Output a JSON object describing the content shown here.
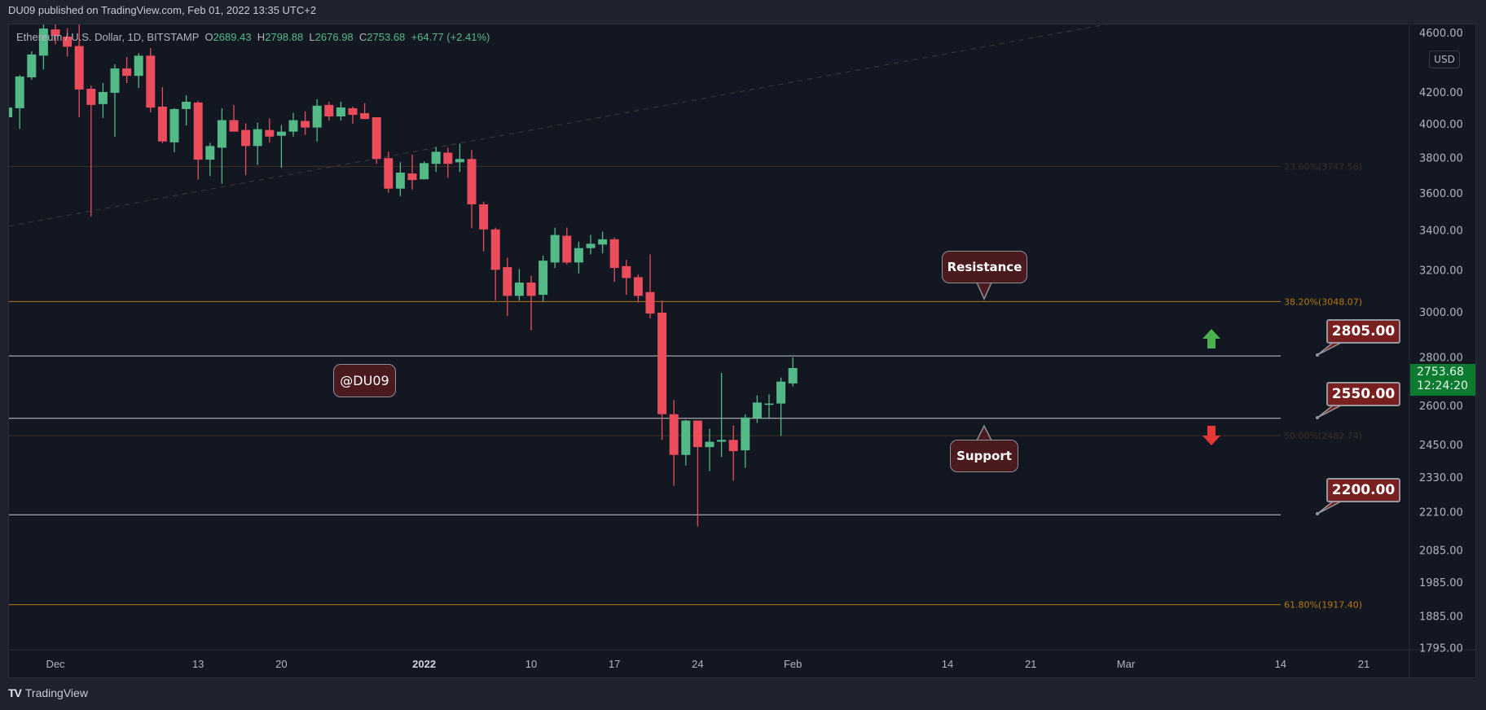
{
  "header": {
    "published": "DU09 published on TradingView.com, Feb 01, 2022 13:35 UTC+2"
  },
  "legend": {
    "symbol": "Ethereum / U.S. Dollar, 1D, BITSTAMP",
    "o_label": "O",
    "o": "2689.43",
    "h_label": "H",
    "h": "2798.88",
    "l_label": "L",
    "l": "2676.98",
    "c_label": "C",
    "c": "2753.68",
    "change": "+64.77 (+2.41%)"
  },
  "currency_button": "USD",
  "last_price": {
    "price": "2753.68",
    "countdown": "12:24:20"
  },
  "annotations": {
    "resistance": "Resistance",
    "support": "Support",
    "watermark": "@DU09",
    "levels": [
      "2805.00",
      "2550.00",
      "2200.00"
    ]
  },
  "footer": {
    "brand": "TradingView",
    "logo_icon": "tradingview-logo-icon"
  },
  "colors": {
    "up": "#53b987",
    "down": "#eb4d5c",
    "fib_strong": "#b8770f",
    "fib_weak": "#3b2f24",
    "level": "#c8cad0",
    "arrow_up": "#4caf50",
    "arrow_down": "#e53935"
  },
  "chart_data": {
    "type": "candlestick",
    "scale": "log",
    "title": "Ethereum / U.S. Dollar, 1D, BITSTAMP",
    "start_date": "2021-11-27",
    "ohlc": [
      [
        4041,
        4110,
        4030,
        4101
      ],
      [
        4097,
        4310,
        3970,
        4301
      ],
      [
        4295,
        4470,
        4279,
        4448
      ],
      [
        4440,
        4660,
        4348,
        4628
      ],
      [
        4622,
        4660,
        4518,
        4577
      ],
      [
        4571,
        4630,
        4434,
        4501
      ],
      [
        4506,
        4660,
        4041,
        4216
      ],
      [
        4221,
        4242,
        3472,
        4118
      ],
      [
        4123,
        4258,
        4036,
        4200
      ],
      [
        4195,
        4382,
        3922,
        4354
      ],
      [
        4354,
        4431,
        4258,
        4305
      ],
      [
        4305,
        4457,
        4226,
        4440
      ],
      [
        4440,
        4492,
        4071,
        4101
      ],
      [
        4107,
        4232,
        3884,
        3894
      ],
      [
        3889,
        4097,
        3830,
        4092
      ],
      [
        4092,
        4179,
        3990,
        4138
      ],
      [
        4133,
        4143,
        3674,
        3787
      ],
      [
        3787,
        3886,
        3693,
        3867
      ],
      [
        3857,
        4097,
        3650,
        4023
      ],
      [
        4023,
        4118,
        3953,
        3953
      ],
      [
        3963,
        4003,
        3698,
        3867
      ],
      [
        3867,
        4008,
        3757,
        3968
      ],
      [
        3963,
        4034,
        3888,
        3923
      ],
      [
        3928,
        3993,
        3741,
        3953
      ],
      [
        3953,
        4069,
        3923,
        4023
      ],
      [
        4018,
        4076,
        3933,
        3978
      ],
      [
        3978,
        4153,
        3894,
        4113
      ],
      [
        4118,
        4138,
        4021,
        4046
      ],
      [
        4046,
        4138,
        4021,
        4102
      ],
      [
        4097,
        4107,
        4001,
        4056
      ],
      [
        4066,
        4128,
        4030,
        4030
      ],
      [
        4041,
        4041,
        3763,
        3791
      ],
      [
        3796,
        3833,
        3600,
        3623
      ],
      [
        3623,
        3772,
        3582,
        3713
      ],
      [
        3708,
        3816,
        3618,
        3671
      ],
      [
        3675,
        3777,
        3675,
        3767
      ],
      [
        3763,
        3862,
        3716,
        3833
      ],
      [
        3828,
        3857,
        3684,
        3763
      ],
      [
        3772,
        3880,
        3716,
        3791
      ],
      [
        3791,
        3843,
        3410,
        3537
      ],
      [
        3537,
        3551,
        3292,
        3404
      ],
      [
        3404,
        3413,
        3053,
        3200
      ],
      [
        3213,
        3260,
        2982,
        3075
      ],
      [
        3075,
        3204,
        3053,
        3138
      ],
      [
        3138,
        3170,
        2917,
        3075
      ],
      [
        3080,
        3270,
        3049,
        3245
      ],
      [
        3236,
        3413,
        3209,
        3375
      ],
      [
        3371,
        3413,
        3227,
        3236
      ],
      [
        3236,
        3340,
        3182,
        3308
      ],
      [
        3308,
        3375,
        3276,
        3330
      ],
      [
        3326,
        3393,
        3281,
        3353
      ],
      [
        3353,
        3362,
        3142,
        3209
      ],
      [
        3218,
        3249,
        3080,
        3160
      ],
      [
        3164,
        3177,
        3044,
        3075
      ],
      [
        3093,
        3277,
        2971,
        2993
      ],
      [
        2997,
        3053,
        2467,
        2566
      ],
      [
        2566,
        2622,
        2300,
        2411
      ],
      [
        2411,
        2544,
        2372,
        2541
      ],
      [
        2541,
        2541,
        2161,
        2440
      ],
      [
        2440,
        2510,
        2352,
        2460
      ],
      [
        2460,
        2733,
        2403,
        2467
      ],
      [
        2467,
        2522,
        2318,
        2425
      ],
      [
        2428,
        2566,
        2364,
        2553
      ],
      [
        2550,
        2641,
        2532,
        2612
      ],
      [
        2603,
        2645,
        2550,
        2608
      ],
      [
        2608,
        2714,
        2482,
        2697
      ],
      [
        2689.43,
        2798.88,
        2676.98,
        2753.68
      ]
    ],
    "y_ticks": [
      {
        "label": "4600.00",
        "value": 4600
      },
      {
        "label": "4200.00",
        "value": 4200
      },
      {
        "label": "4000.00",
        "value": 4000
      },
      {
        "label": "3800.00",
        "value": 3800
      },
      {
        "label": "3600.00",
        "value": 3600
      },
      {
        "label": "3400.00",
        "value": 3400
      },
      {
        "label": "3200.00",
        "value": 3200
      },
      {
        "label": "3000.00",
        "value": 3000
      },
      {
        "label": "2800.00",
        "value": 2800
      },
      {
        "label": "2600.00",
        "value": 2600
      },
      {
        "label": "2450.00",
        "value": 2450
      },
      {
        "label": "2330.00",
        "value": 2330
      },
      {
        "label": "2210.00",
        "value": 2210
      },
      {
        "label": "2085.00",
        "value": 2085
      },
      {
        "label": "1985.00",
        "value": 1985
      },
      {
        "label": "1885.00",
        "value": 1885
      },
      {
        "label": "1795.00",
        "value": 1795
      }
    ],
    "x_ticks": [
      {
        "label": "Dec",
        "day": 4
      },
      {
        "label": "13",
        "day": 16
      },
      {
        "label": "20",
        "day": 23
      },
      {
        "label": "2022",
        "day": 35,
        "bold": true
      },
      {
        "label": "10",
        "day": 44
      },
      {
        "label": "17",
        "day": 51
      },
      {
        "label": "24",
        "day": 58
      },
      {
        "label": "Feb",
        "day": 66
      },
      {
        "label": "14",
        "day": 79
      },
      {
        "label": "21",
        "day": 86
      },
      {
        "label": "Mar",
        "day": 94
      },
      {
        "label": "14",
        "day": 107
      },
      {
        "label": "21",
        "day": 114
      }
    ],
    "horizontal_levels": [
      2805,
      2550,
      2200
    ],
    "fibonacci": [
      {
        "label": "23.60%(3747.56)",
        "value": 3747.56,
        "strong": false
      },
      {
        "label": "38.20%(3048.07)",
        "value": 3048.07,
        "strong": true
      },
      {
        "label": "50.00%(2482.74)",
        "value": 2482.74,
        "strong": false
      },
      {
        "label": "61.80%(1917.40)",
        "value": 1917.4,
        "strong": true
      }
    ],
    "trendline": {
      "from": {
        "day": -0.7,
        "price": 3412
      },
      "to": {
        "day": 92.5,
        "price": 4660
      }
    }
  }
}
